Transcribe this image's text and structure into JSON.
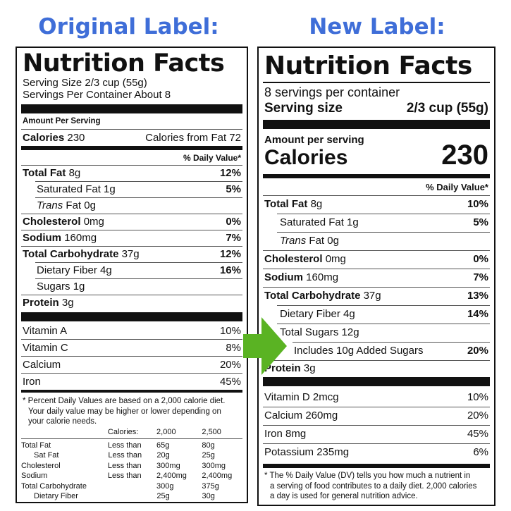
{
  "headings": {
    "original": "Original Label:",
    "new": "New Label:"
  },
  "original": {
    "title": "Nutrition Facts",
    "serving_size": "Serving Size 2/3 cup (55g)",
    "servings": "Servings Per Container About 8",
    "amount_per_serving": "Amount Per Serving",
    "calories_label": "Calories",
    "calories_value": "230",
    "calories_from_fat": "Calories from Fat 72",
    "dv_header": "% Daily Value*",
    "nutrients": {
      "total_fat": {
        "name": "Total Fat",
        "amount": "8g",
        "dv": "12%"
      },
      "sat_fat": {
        "name": "Saturated Fat 1g",
        "dv": "5%"
      },
      "trans_fat": {
        "name": "Trans",
        "rest": "Fat 0g"
      },
      "cholesterol": {
        "name": "Cholesterol",
        "amount": "0mg",
        "dv": "0%"
      },
      "sodium": {
        "name": "Sodium",
        "amount": "160mg",
        "dv": "7%"
      },
      "total_carb": {
        "name": "Total Carbohydrate",
        "amount": "37g",
        "dv": "12%"
      },
      "fiber": {
        "name": "Dietary Fiber 4g",
        "dv": "16%"
      },
      "sugars": {
        "name": "Sugars 1g"
      },
      "protein": {
        "name": "Protein",
        "amount": "3g"
      }
    },
    "vitamins": [
      {
        "name": "Vitamin A",
        "dv": "10%"
      },
      {
        "name": "Vitamin C",
        "dv": "8%"
      },
      {
        "name": "Calcium",
        "dv": "20%"
      },
      {
        "name": "Iron",
        "dv": "45%"
      }
    ],
    "footnote": {
      "line1": "* Percent Daily Values are based on a 2,000 calorie diet.",
      "line2": "Your daily value may be higher or lower depending on",
      "line3": "your calorie needs."
    },
    "footnote_table": {
      "header": [
        "",
        "Calories:",
        "2,000",
        "2,500"
      ],
      "rows": [
        [
          "Total Fat",
          "Less than",
          "65g",
          "80g"
        ],
        [
          "Sat Fat",
          "Less than",
          "20g",
          "25g"
        ],
        [
          "Cholesterol",
          "Less than",
          "300mg",
          "300mg"
        ],
        [
          "Sodium",
          "Less than",
          "2,400mg",
          "2,400mg"
        ],
        [
          "Total Carbohydrate",
          "",
          "300g",
          "375g"
        ],
        [
          "Dietary Fiber",
          "",
          "25g",
          "30g"
        ]
      ]
    }
  },
  "new": {
    "title": "Nutrition Facts",
    "servings": "8 servings per container",
    "serving_size_label": "Serving size",
    "serving_size_value": "2/3 cup (55g)",
    "amount_per_serving": "Amount per serving",
    "calories_label": "Calories",
    "calories_value": "230",
    "dv_header": "% Daily Value*",
    "nutrients": {
      "total_fat": {
        "name": "Total Fat",
        "amount": "8g",
        "dv": "10%"
      },
      "sat_fat": {
        "name": "Saturated Fat 1g",
        "dv": "5%"
      },
      "trans_fat": {
        "name": "Trans",
        "rest": "Fat 0g"
      },
      "cholesterol": {
        "name": "Cholesterol",
        "amount": "0mg",
        "dv": "0%"
      },
      "sodium": {
        "name": "Sodium",
        "amount": "160mg",
        "dv": "7%"
      },
      "total_carb": {
        "name": "Total Carbohydrate",
        "amount": "37g",
        "dv": "13%"
      },
      "fiber": {
        "name": "Dietary Fiber 4g",
        "dv": "14%"
      },
      "total_sugars": {
        "name": "Total Sugars 12g"
      },
      "added_sugars": {
        "name": "Includes 10g Added Sugars",
        "dv": "20%"
      },
      "protein": {
        "name": "Protein",
        "amount": "3g"
      }
    },
    "vitamins": [
      {
        "name": "Vitamin D 2mcg",
        "dv": "10%"
      },
      {
        "name": "Calcium 260mg",
        "dv": "20%"
      },
      {
        "name": "Iron 8mg",
        "dv": "45%"
      },
      {
        "name": "Potassium 235mg",
        "dv": "6%"
      }
    ],
    "footnote": {
      "line1": "* The % Daily Value (DV) tells you how much a nutrient in",
      "line2": "a serving of food contributes to a daily diet. 2,000 calories",
      "line3": "a day is used for general nutrition advice."
    }
  },
  "colors": {
    "heading": "#3f6ed8",
    "arrow": "#5ab323",
    "ink": "#111111"
  }
}
